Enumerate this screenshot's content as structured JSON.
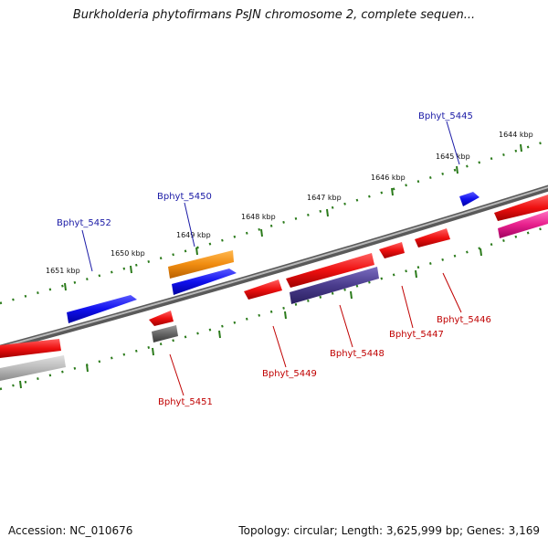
{
  "title": "Burkholderia phytofirmans PsJN chromosome 2, complete sequen...",
  "footer": {
    "accession": "Accession: NC_010676",
    "summary": "Topology: circular; Length: 3,625,999 bp; Genes: 3,169"
  },
  "scale_labels": [
    "1651 kbp",
    "1650 kbp",
    "1649 kbp",
    "1648 kbp",
    "1647 kbp",
    "1646 kbp",
    "1645 kbp",
    "1644 kbp"
  ],
  "genes_forward": [
    "Bphyt_5452",
    "Bphyt_5450",
    "Bphyt_5445"
  ],
  "genes_reverse": [
    "Bphyt_5451",
    "Bphyt_5449",
    "Bphyt_5448",
    "Bphyt_5447",
    "Bphyt_5446"
  ],
  "colors": {
    "blue": "#1010ee",
    "orange": "#f08c10",
    "red": "#ee1010",
    "purple": "#4a3c8c",
    "gray": "#666666",
    "lightgray": "#bbbbbb",
    "magenta": "#e8208c",
    "tick": "#2a7a1a",
    "backbone": "#808080",
    "plus_label": "#1a1aa6",
    "minus_label": "#c00000"
  }
}
